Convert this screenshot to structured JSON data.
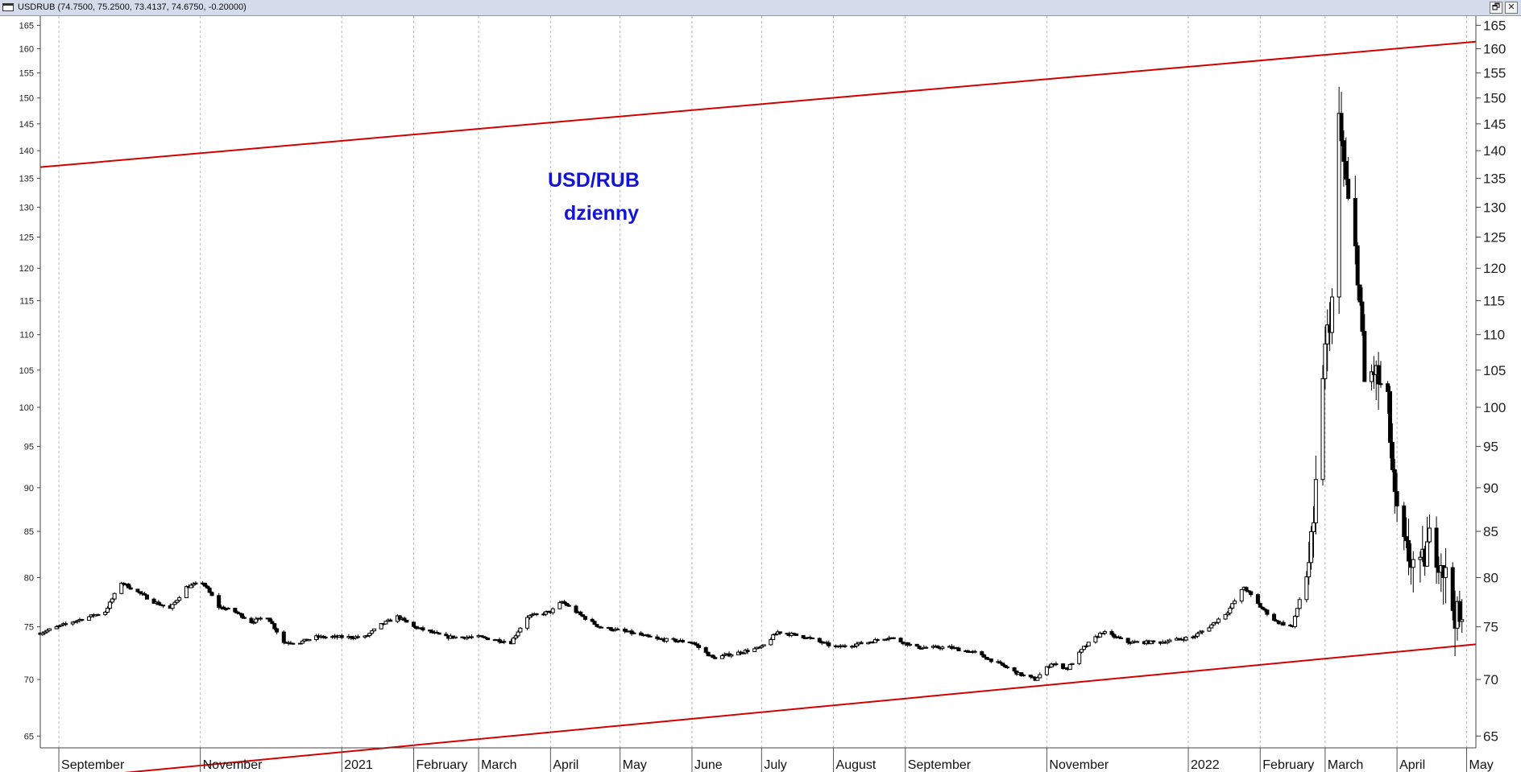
{
  "window": {
    "title": "USDRUB (74.7500, 75.2500, 73.4137, 74.6750, -0.20000)",
    "buttons": {
      "restore": "🗗",
      "close": "✕"
    }
  },
  "colors": {
    "trendline": "#d40000",
    "annotation": "#1414d8",
    "candle": "#000000",
    "grid": "#b8b8b8"
  },
  "chart_data": {
    "type": "candlestick",
    "title": "",
    "annotation": [
      "USD/RUB",
      "dzienny"
    ],
    "y_scale": "log",
    "ylim": [
      64,
      167
    ],
    "y_ticks": [
      65,
      70,
      75,
      80,
      85,
      90,
      95,
      100,
      105,
      110,
      115,
      120,
      125,
      130,
      135,
      140,
      145,
      150,
      155,
      160,
      165
    ],
    "xlim": [
      "2020-08-24",
      "2022-05-05"
    ],
    "x_ticks": [
      {
        "date": "2020-09-01",
        "label": "September"
      },
      {
        "date": "2020-11-01",
        "label": "November"
      },
      {
        "date": "2021-01-01",
        "label": "2021"
      },
      {
        "date": "2021-02-01",
        "label": "February"
      },
      {
        "date": "2021-03-01",
        "label": "March"
      },
      {
        "date": "2021-04-01",
        "label": "April"
      },
      {
        "date": "2021-05-01",
        "label": "May"
      },
      {
        "date": "2021-06-01",
        "label": "June"
      },
      {
        "date": "2021-07-01",
        "label": "July"
      },
      {
        "date": "2021-08-01",
        "label": "August"
      },
      {
        "date": "2021-09-01",
        "label": "September"
      },
      {
        "date": "2021-11-01",
        "label": "November"
      },
      {
        "date": "2022-01-01",
        "label": "2022"
      },
      {
        "date": "2022-02-01",
        "label": "February"
      },
      {
        "date": "2022-03-01",
        "label": "March"
      },
      {
        "date": "2022-04-01",
        "label": "April"
      },
      {
        "date": "2022-05-01",
        "label": "May"
      }
    ],
    "trendlines": [
      {
        "start": {
          "date": "2020-08-24",
          "value": 137
        },
        "end": {
          "date": "2022-05-05",
          "value": 161.5
        }
      },
      {
        "start": {
          "date": "2020-08-24",
          "value": 61.3
        },
        "end": {
          "date": "2022-05-05",
          "value": 73.3
        }
      }
    ],
    "close_series": [
      [
        "2020-08-24",
        74.4
      ],
      [
        "2020-09-07",
        75.5
      ],
      [
        "2020-09-21",
        76.5
      ],
      [
        "2020-09-28",
        79.5
      ],
      [
        "2020-10-05",
        78.5
      ],
      [
        "2020-10-12",
        77.5
      ],
      [
        "2020-10-19",
        76.8
      ],
      [
        "2020-10-26",
        79.0
      ],
      [
        "2020-11-02",
        79.5
      ],
      [
        "2020-11-09",
        77.0
      ],
      [
        "2020-11-16",
        76.5
      ],
      [
        "2020-11-23",
        75.5
      ],
      [
        "2020-11-30",
        76.0
      ],
      [
        "2020-12-07",
        73.5
      ],
      [
        "2020-12-14",
        73.5
      ],
      [
        "2020-12-21",
        74.0
      ],
      [
        "2020-12-28",
        74.0
      ],
      [
        "2021-01-11",
        74.0
      ],
      [
        "2021-01-18",
        75.2
      ],
      [
        "2021-01-25",
        76.0
      ],
      [
        "2021-02-01",
        75.0
      ],
      [
        "2021-02-15",
        74.0
      ],
      [
        "2021-03-01",
        74.0
      ],
      [
        "2021-03-15",
        73.5
      ],
      [
        "2021-03-22",
        76.0
      ],
      [
        "2021-04-01",
        76.5
      ],
      [
        "2021-04-06",
        77.5
      ],
      [
        "2021-04-15",
        76.0
      ],
      [
        "2021-04-22",
        75.0
      ],
      [
        "2021-05-04",
        74.5
      ],
      [
        "2021-05-17",
        73.8
      ],
      [
        "2021-06-01",
        73.5
      ],
      [
        "2021-06-10",
        72.0
      ],
      [
        "2021-06-21",
        72.5
      ],
      [
        "2021-07-01",
        73.0
      ],
      [
        "2021-07-08",
        74.5
      ],
      [
        "2021-07-20",
        74.0
      ],
      [
        "2021-08-02",
        73.0
      ],
      [
        "2021-08-16",
        73.5
      ],
      [
        "2021-08-25",
        74.0
      ],
      [
        "2021-09-06",
        73.0
      ],
      [
        "2021-09-20",
        73.0
      ],
      [
        "2021-10-01",
        72.5
      ],
      [
        "2021-10-11",
        71.5
      ],
      [
        "2021-10-20",
        70.5
      ],
      [
        "2021-10-27",
        70.0
      ],
      [
        "2021-11-03",
        71.5
      ],
      [
        "2021-11-10",
        71.0
      ],
      [
        "2021-11-17",
        73.0
      ],
      [
        "2021-11-25",
        74.5
      ],
      [
        "2021-12-06",
        73.5
      ],
      [
        "2021-12-20",
        73.5
      ],
      [
        "2022-01-03",
        74.0
      ],
      [
        "2022-01-10",
        75.0
      ],
      [
        "2022-01-18",
        76.5
      ],
      [
        "2022-01-25",
        79.0
      ],
      [
        "2022-02-01",
        77.0
      ],
      [
        "2022-02-08",
        75.5
      ],
      [
        "2022-02-15",
        75.0
      ],
      [
        "2022-02-21",
        80.5
      ],
      [
        "2022-02-24",
        84.5
      ],
      [
        "2022-02-28",
        105
      ],
      [
        "2022-03-04",
        115
      ],
      [
        "2022-03-07",
        145
      ],
      [
        "2022-03-11",
        130
      ],
      [
        "2022-03-15",
        120
      ],
      [
        "2022-03-18",
        103
      ],
      [
        "2022-03-22",
        105
      ],
      [
        "2022-03-28",
        100
      ],
      [
        "2022-03-31",
        88
      ],
      [
        "2022-04-04",
        83
      ],
      [
        "2022-04-11",
        80.5
      ],
      [
        "2022-04-15",
        84.0
      ],
      [
        "2022-04-20",
        82.0
      ],
      [
        "2022-04-25",
        77.0
      ],
      [
        "2022-04-29",
        74.7
      ]
    ]
  }
}
